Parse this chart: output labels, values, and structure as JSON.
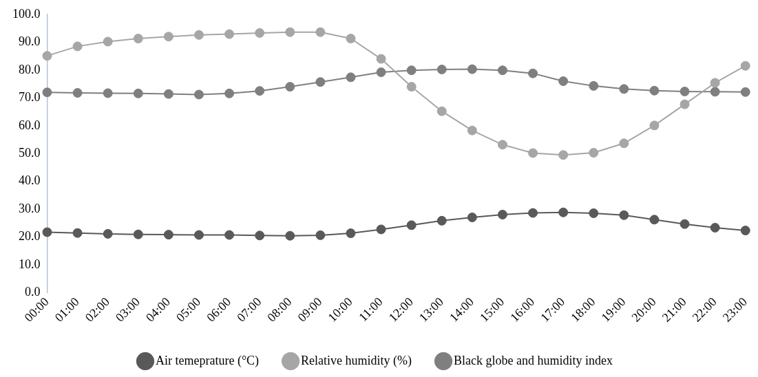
{
  "chart_data": {
    "type": "line",
    "categories": [
      "00:00",
      "01:00",
      "02:00",
      "03:00",
      "04:00",
      "05:00",
      "06:00",
      "07:00",
      "08:00",
      "09:00",
      "10:00",
      "11:00",
      "12:00",
      "13:00",
      "14:00",
      "15:00",
      "16:00",
      "17:00",
      "18:00",
      "19:00",
      "20:00",
      "21:00",
      "22:00",
      "23:00"
    ],
    "series": [
      {
        "name": "Air temeprature (°C)",
        "color": "#595959",
        "values": [
          21.8,
          21.5,
          21.2,
          21.0,
          20.9,
          20.8,
          20.8,
          20.6,
          20.5,
          20.7,
          21.4,
          22.8,
          24.3,
          25.9,
          27.1,
          28.1,
          28.7,
          28.9,
          28.6,
          27.9,
          26.3,
          24.7,
          23.4,
          22.4
        ]
      },
      {
        "name": "Relative humidity (%)",
        "color": "#a6a6a6",
        "values": [
          85.1,
          88.5,
          90.2,
          91.3,
          92.0,
          92.6,
          92.9,
          93.3,
          93.6,
          93.6,
          91.3,
          84.0,
          74.0,
          65.2,
          58.3,
          53.2,
          50.2,
          49.5,
          50.3,
          53.7,
          60.1,
          67.7,
          75.4,
          81.5
        ]
      },
      {
        "name": "Black globe and humidity index",
        "color": "#7f7f7f",
        "values": [
          72.0,
          71.8,
          71.7,
          71.6,
          71.4,
          71.2,
          71.6,
          72.5,
          74.0,
          75.7,
          77.4,
          79.2,
          79.9,
          80.2,
          80.3,
          79.9,
          78.8,
          76.0,
          74.3,
          73.2,
          72.6,
          72.3,
          72.2,
          72.1
        ]
      }
    ],
    "ylim": [
      0,
      100
    ],
    "yticks": [
      {
        "value": 0,
        "label": "0.0"
      },
      {
        "value": 10,
        "label": "10.0"
      },
      {
        "value": 20,
        "label": "20.0"
      },
      {
        "value": 30,
        "label": "30.0"
      },
      {
        "value": 40,
        "label": "40.0"
      },
      {
        "value": 50,
        "label": "50.0"
      },
      {
        "value": 60,
        "label": "60.0"
      },
      {
        "value": 70,
        "label": "70.0"
      },
      {
        "value": 80,
        "label": "80.0"
      },
      {
        "value": 90,
        "label": "90.0"
      },
      {
        "value": 100,
        "label": "100.0"
      }
    ],
    "grid": false,
    "legend": "bottom",
    "marker": "circle",
    "line_style": "solid"
  }
}
